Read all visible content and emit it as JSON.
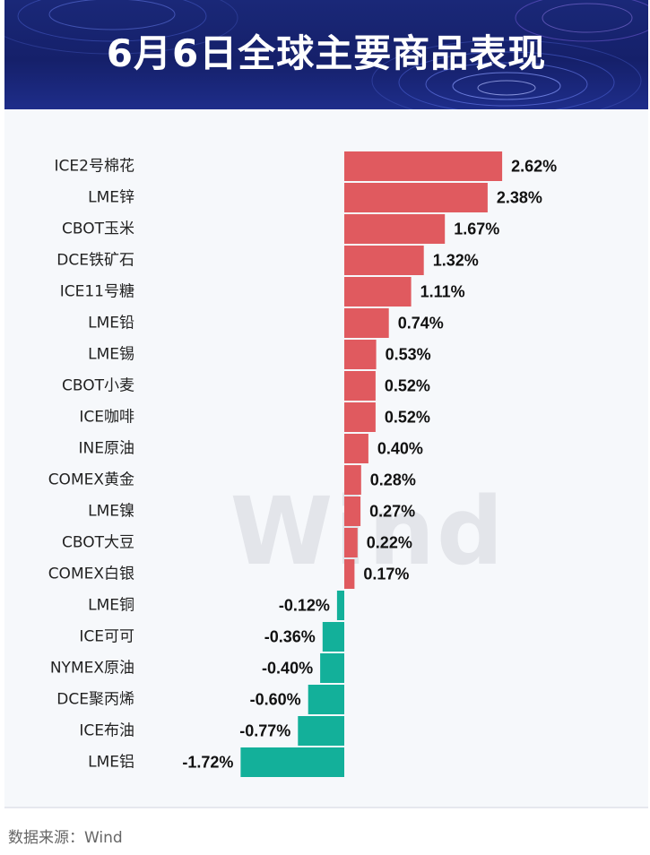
{
  "title": "6月6日全球主要商品表现",
  "watermark": "Wind",
  "footer": "数据来源：Wind",
  "colors": {
    "positive": "#e05a5f",
    "negative": "#13b09a",
    "header_bg": "#1a2878"
  },
  "chart_data": {
    "type": "bar",
    "orientation": "horizontal",
    "categories": [
      "ICE2号棉花",
      "LME锌",
      "CBOT玉米",
      "DCE铁矿石",
      "ICE11号糖",
      "LME铅",
      "LME锡",
      "CBOT小麦",
      "ICE咖啡",
      "INE原油",
      "COMEX黄金",
      "LME镍",
      "CBOT大豆",
      "COMEX白银",
      "LME铜",
      "ICE可可",
      "NYMEX原油",
      "DCE聚丙烯",
      "ICE布油",
      "LME铝"
    ],
    "values": [
      2.62,
      2.38,
      1.67,
      1.32,
      1.11,
      0.74,
      0.53,
      0.52,
      0.52,
      0.4,
      0.28,
      0.27,
      0.22,
      0.17,
      -0.12,
      -0.36,
      -0.4,
      -0.6,
      -0.77,
      -1.72
    ],
    "labels": [
      "2.62%",
      "2.38%",
      "1.67%",
      "1.32%",
      "1.11%",
      "0.74%",
      "0.53%",
      "0.52%",
      "0.52%",
      "0.40%",
      "0.28%",
      "0.27%",
      "0.22%",
      "0.17%",
      "-0.12%",
      "-0.36%",
      "-0.40%",
      "-0.60%",
      "-0.77%",
      "-1.72%"
    ],
    "unit": "%",
    "xlim": [
      -1.72,
      2.62
    ],
    "grid": false,
    "legend": false
  }
}
